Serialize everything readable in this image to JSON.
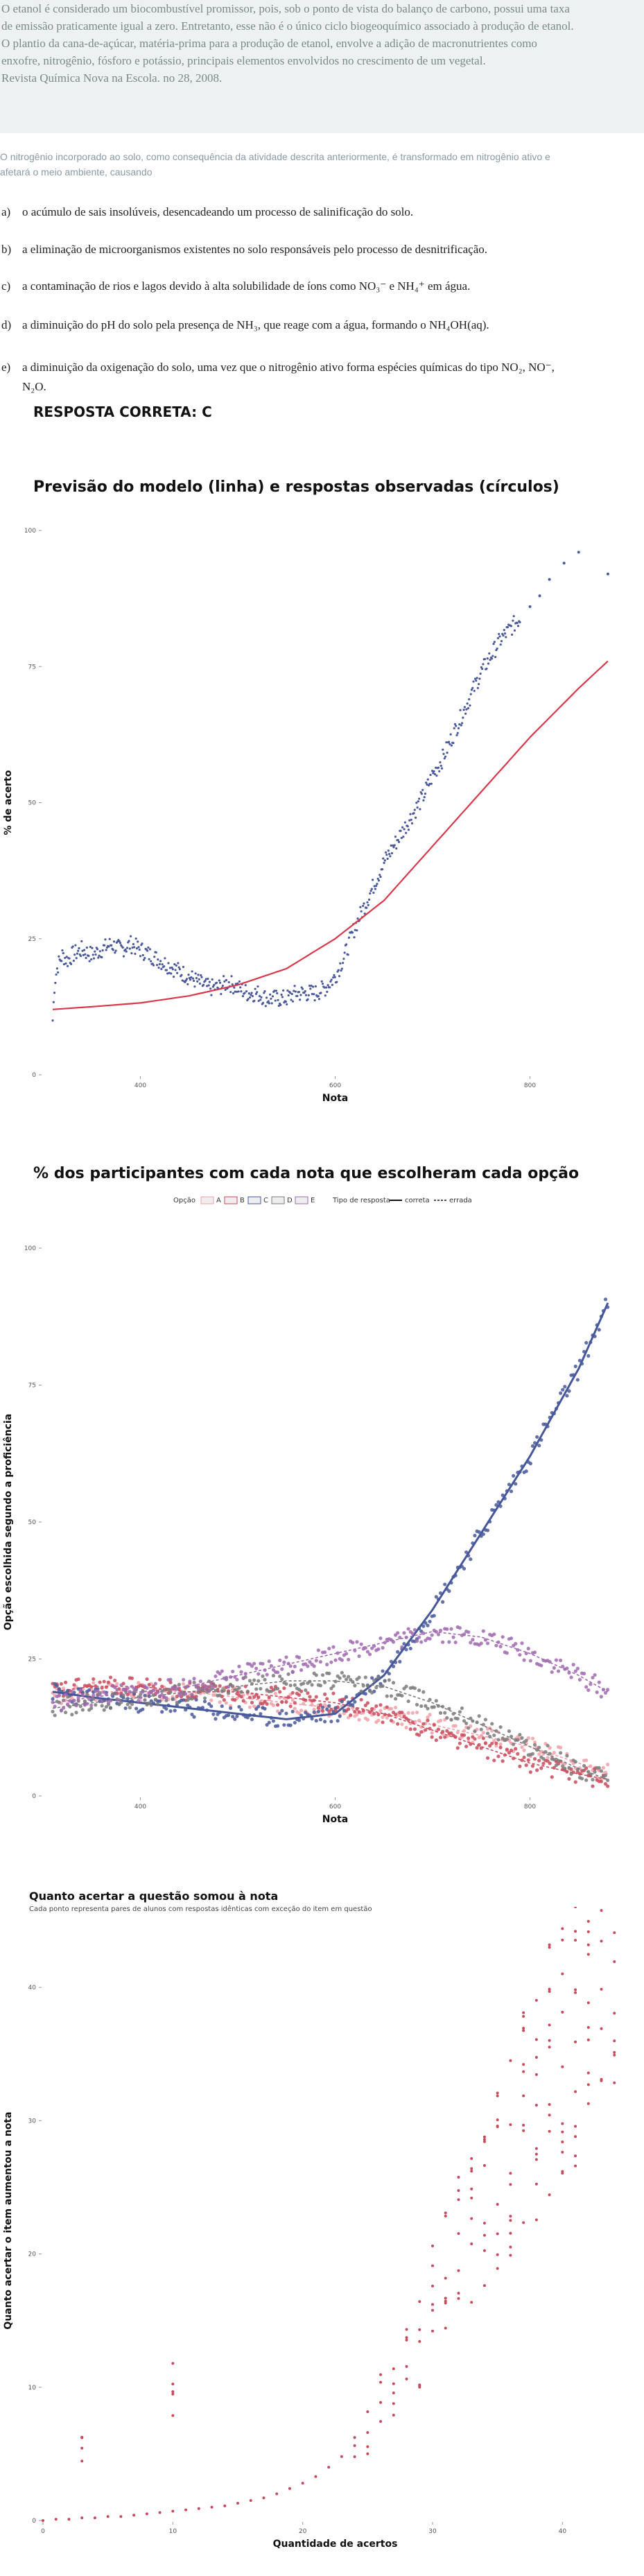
{
  "context": {
    "lines": [
      "O etanol é considerado um biocombustível promissor, pois, sob o ponto de vista do balanço de carbono, possui uma taxa",
      "de emissão praticamente igual a zero. Entretanto, esse não é o único ciclo biogeoquímico associado à produção de etanol.",
      "O plantio da cana-de-açúcar, matéria-prima para a produção de etanol, envolve a adição de macronutrientes como",
      "enxofre, nitrogênio, fósforo e potássio, principais elementos envolvidos no crescimento de um vegetal.",
      "Revista Química Nova na Escola. no 28, 2008."
    ]
  },
  "stem": {
    "line1": "O nitrogênio incorporado ao solo, como consequência da atividade descrita anteriormente, é transformado em nitrogênio ativo e",
    "line2": "afetará o meio ambiente, causando"
  },
  "options": [
    {
      "letter": "a)",
      "text": "o acúmulo de sais insolúveis, desencadeando um processo de salinificação do solo."
    },
    {
      "letter": "b)",
      "text": "a eliminação de microorganismos existentes no solo responsáveis pelo processo de desnitrificação."
    },
    {
      "letter": "c)",
      "text": "a contaminação de rios e lagos devido à alta solubilidade de íons como NO₃⁻ e NH₄⁺ em água."
    },
    {
      "letter": "d)",
      "text": "a diminuição do pH do solo pela presença de NH₃, que reage com a água, formando o NH₄OH(aq)."
    },
    {
      "letter": "e)",
      "text": "a diminuição da oxigenação do solo, uma vez que o nitrogênio ativo forma espécies químicas do tipo NO₂, NO⁻,"
    },
    {
      "letter": "",
      "text": "N₂O."
    }
  ],
  "answer": "RESPOSTA CORRETA: C",
  "chart_data": [
    {
      "type": "scatter",
      "title": "Previsão do modelo (linha) e respostas observadas (círculos)",
      "xlabel": "Nota",
      "ylabel": "% de acerto",
      "xlim": [
        300,
        900
      ],
      "ylim": [
        0,
        100
      ],
      "xticks": [
        400,
        600,
        800
      ],
      "yticks": [
        0,
        25,
        50,
        75,
        100
      ],
      "grid": false,
      "colors": {
        "points": "#4a5a9a",
        "model": "#d9384a"
      },
      "series": [
        {
          "kind": "points",
          "x": [
            310,
            312,
            315,
            320,
            325,
            330,
            340,
            350,
            360,
            370,
            380,
            390,
            400,
            410,
            420,
            430,
            440,
            450,
            460,
            470,
            480,
            490,
            500,
            510,
            520,
            530,
            540,
            550,
            560,
            570,
            580,
            590,
            600,
            610,
            620,
            630,
            640,
            650,
            660,
            670,
            680,
            690,
            700,
            710,
            720,
            730,
            740,
            750,
            760,
            770,
            780,
            790,
            800,
            810,
            820,
            835,
            850,
            880
          ],
          "y": [
            10,
            17,
            20,
            22,
            21,
            22,
            23,
            22,
            23,
            24,
            23,
            24,
            23,
            22,
            21,
            20,
            19,
            18,
            17,
            16,
            16,
            17,
            16,
            15,
            15,
            14,
            14,
            14,
            15,
            15,
            15,
            16,
            18,
            22,
            27,
            31,
            35,
            39,
            42,
            45,
            48,
            51,
            55,
            58,
            62,
            66,
            70,
            74,
            77,
            80,
            82,
            84,
            86,
            88,
            91,
            94,
            96,
            92
          ]
        },
        {
          "kind": "model",
          "x": [
            310,
            350,
            400,
            450,
            500,
            550,
            600,
            650,
            700,
            750,
            800,
            850,
            880
          ],
          "y": [
            12,
            12.5,
            13.2,
            14.5,
            16.5,
            19.5,
            25,
            32,
            42,
            52,
            62,
            71,
            76
          ]
        }
      ]
    },
    {
      "type": "scatter",
      "title": "% dos participantes com cada nota que escolheram cada opção",
      "xlabel": "Nota",
      "ylabel": "Opção escolhida segundo a proficiência",
      "xlim": [
        300,
        900
      ],
      "ylim": [
        0,
        100
      ],
      "xticks": [
        400,
        600,
        800
      ],
      "yticks": [
        0,
        25,
        50,
        75,
        100
      ],
      "grid": false,
      "legend": {
        "option_label": "Opção",
        "options": [
          "A",
          "B",
          "C",
          "D",
          "E"
        ],
        "type_label": "Tipo de resposta",
        "types": [
          "correta",
          "errada"
        ]
      },
      "series": [
        {
          "name": "A",
          "color": "#f2a0a8",
          "x": [
            310,
            350,
            400,
            450,
            500,
            550,
            600,
            650,
            700,
            750,
            800,
            850,
            880
          ],
          "y": [
            18,
            19,
            19,
            19,
            18,
            17,
            16,
            15,
            13,
            11,
            9,
            6,
            4
          ]
        },
        {
          "name": "B",
          "color": "#c94a5a",
          "x": [
            310,
            350,
            400,
            450,
            500,
            550,
            600,
            650,
            700,
            750,
            800,
            850,
            880
          ],
          "y": [
            19,
            20,
            20,
            19,
            19,
            18,
            17,
            15,
            12,
            9,
            6,
            4,
            3
          ]
        },
        {
          "name": "C",
          "color": "#47589a",
          "x": [
            310,
            350,
            400,
            450,
            500,
            550,
            600,
            650,
            700,
            750,
            800,
            850,
            880
          ],
          "y": [
            19,
            18,
            17,
            16,
            15,
            14,
            15,
            22,
            34,
            48,
            62,
            78,
            90
          ]
        },
        {
          "name": "D",
          "color": "#7a7a7a",
          "x": [
            310,
            350,
            400,
            450,
            500,
            550,
            600,
            650,
            700,
            750,
            800,
            850,
            880
          ],
          "y": [
            16,
            17,
            18,
            19,
            20,
            21,
            21,
            20,
            17,
            13,
            9,
            5,
            3
          ]
        },
        {
          "name": "E",
          "color": "#a06ab0",
          "x": [
            310,
            350,
            400,
            450,
            500,
            550,
            600,
            650,
            700,
            750,
            800,
            850,
            880
          ],
          "y": [
            17,
            18,
            19,
            20,
            22,
            24,
            26,
            28,
            30,
            29,
            26,
            22,
            19
          ]
        }
      ]
    },
    {
      "type": "scatter",
      "title": "Quanto acertar a questão somou à nota",
      "subtitle": "Cada ponto representa pares de alunos com respostas idênticas com exceção do item em questão",
      "xlabel": "Quantidade de acertos",
      "ylabel": "Quanto acertar o item aumentou a nota",
      "xlim": [
        0,
        45
      ],
      "ylim": [
        0,
        45
      ],
      "xticks": [
        0,
        10,
        20,
        30,
        40
      ],
      "yticks": [
        0,
        10,
        20,
        30,
        40
      ],
      "grid": false,
      "colors": {
        "points": "#c94a5a"
      },
      "points": {
        "x": [
          0,
          1,
          2,
          3,
          4,
          5,
          6,
          7,
          8,
          9,
          10,
          11,
          12,
          13,
          14,
          15,
          16,
          17,
          18,
          19,
          20,
          21,
          22,
          23,
          24,
          25,
          26,
          27,
          28,
          29,
          30,
          31,
          32,
          33,
          34,
          35,
          36,
          37,
          38,
          39,
          40,
          41,
          42,
          43,
          44,
          3,
          10
        ],
        "y": [
          0,
          0.1,
          0.1,
          0.2,
          0.2,
          0.3,
          0.3,
          0.4,
          0.5,
          0.6,
          0.7,
          0.8,
          0.9,
          1,
          1.1,
          1.3,
          1.5,
          1.7,
          2,
          2.4,
          2.8,
          3.3,
          4,
          4.8,
          5.8,
          7,
          8.5,
          10,
          12,
          14,
          16,
          18,
          20,
          22,
          24,
          26,
          28,
          30,
          32,
          34,
          36,
          38,
          40,
          42,
          44,
          6,
          11
        ]
      }
    }
  ]
}
